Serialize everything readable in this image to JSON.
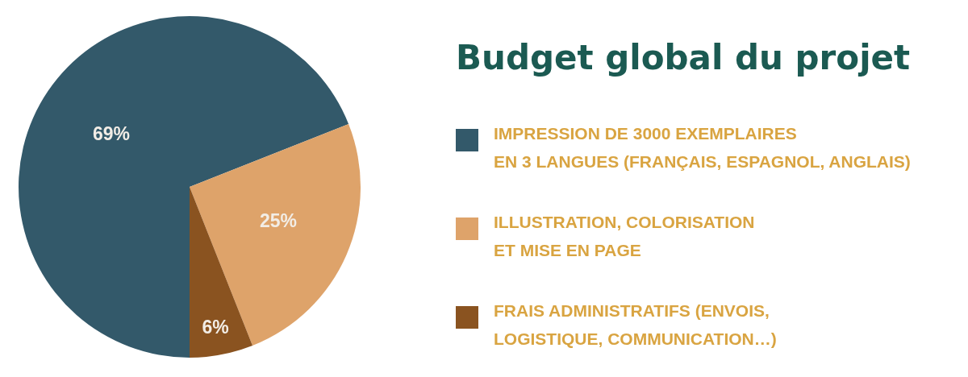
{
  "chart_data": {
    "type": "pie",
    "title": "Budget global du projet",
    "categories": [
      "IMPRESSION DE 3000 EXEMPLAIRES\nEN 3 LANGUES (FRANÇAIS, ESPAGNOL, ANGLAIS)",
      "ILLUSTRATION, COLORISATION\nET MISE EN PAGE",
      "FRAIS ADMINISTRATIFS (ENVOIS,\nLOGISTIQUE, COMMUNICATION…)"
    ],
    "values": [
      69,
      25,
      6
    ],
    "colors": [
      "#33596a",
      "#dea36a",
      "#8a5320"
    ],
    "value_labels": [
      "69%",
      "25%",
      "6%"
    ],
    "legend": "right"
  }
}
